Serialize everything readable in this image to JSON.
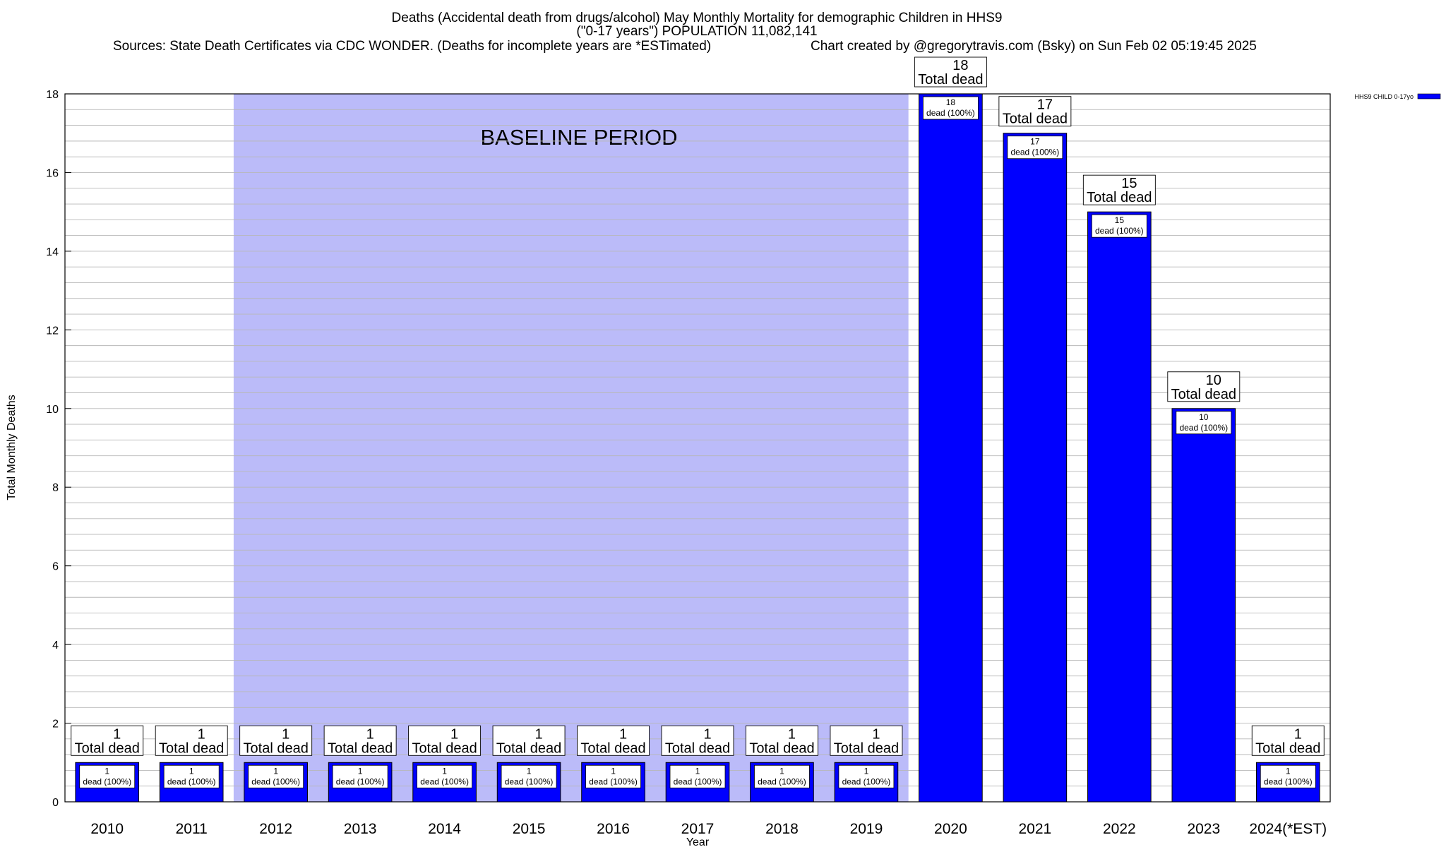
{
  "chart_data": {
    "type": "bar",
    "title_lines": [
      "Deaths (Accidental death from drugs/alcohol) May Monthly Mortality for demographic Children in HHS9",
      "(\"0-17 years\") POPULATION 11,082,141",
      "Sources: State Death Certificates via CDC WONDER. (Deaths for incomplete years are *ESTimated)",
      "Chart created by @gregorytravis.com (Bsky) on Sun Feb 02 05:19:45 2025"
    ],
    "xlabel": "Year",
    "ylabel": "Total Monthly Deaths",
    "ylim": [
      0,
      18
    ],
    "yticks": [
      0,
      2,
      4,
      6,
      8,
      10,
      12,
      14,
      16,
      18
    ],
    "grid": true,
    "categories": [
      "2010",
      "2011",
      "2012",
      "2013",
      "2014",
      "2015",
      "2016",
      "2017",
      "2018",
      "2019",
      "2020",
      "2021",
      "2022",
      "2023",
      "2024(*EST)"
    ],
    "series": [
      {
        "name": "HHS9 CHILD 0-17yo",
        "color": "#0000ff",
        "values": [
          1,
          1,
          1,
          1,
          1,
          1,
          1,
          1,
          1,
          1,
          18,
          17,
          15,
          10,
          1
        ]
      }
    ],
    "total_labels": [
      {
        "number": "1",
        "text": "Total dead"
      },
      {
        "number": "1",
        "text": "Total dead"
      },
      {
        "number": "1",
        "text": "Total dead"
      },
      {
        "number": "1",
        "text": "Total dead"
      },
      {
        "number": "1",
        "text": "Total dead"
      },
      {
        "number": "1",
        "text": "Total dead"
      },
      {
        "number": "1",
        "text": "Total dead"
      },
      {
        "number": "1",
        "text": "Total dead"
      },
      {
        "number": "1",
        "text": "Total dead"
      },
      {
        "number": "1",
        "text": "Total dead"
      },
      {
        "number": "18",
        "text": "Total dead"
      },
      {
        "number": "17",
        "text": "Total dead"
      },
      {
        "number": "15",
        "text": "Total dead"
      },
      {
        "number": "10",
        "text": "Total dead"
      },
      {
        "number": "1",
        "text": "Total dead"
      }
    ],
    "segment_labels": [
      {
        "number": "1",
        "text": "dead (100%)"
      },
      {
        "number": "1",
        "text": "dead (100%)"
      },
      {
        "number": "1",
        "text": "dead (100%)"
      },
      {
        "number": "1",
        "text": "dead (100%)"
      },
      {
        "number": "1",
        "text": "dead (100%)"
      },
      {
        "number": "1",
        "text": "dead (100%)"
      },
      {
        "number": "1",
        "text": "dead (100%)"
      },
      {
        "number": "1",
        "text": "dead (100%)"
      },
      {
        "number": "1",
        "text": "dead (100%)"
      },
      {
        "number": "1",
        "text": "dead (100%)"
      },
      {
        "number": "18",
        "text": "dead (100%)"
      },
      {
        "number": "17",
        "text": "dead (100%)"
      },
      {
        "number": "15",
        "text": "dead (100%)"
      },
      {
        "number": "10",
        "text": "dead (100%)"
      },
      {
        "number": "1",
        "text": "dead (100%)"
      }
    ],
    "baseline_period": {
      "label": "BASELINE PERIOD",
      "from_category": "2012",
      "to_category": "2019",
      "color": "#bbbbf9"
    },
    "legend": {
      "position": "top-right",
      "entries": [
        "HHS9 CHILD 0-17yo"
      ]
    }
  }
}
